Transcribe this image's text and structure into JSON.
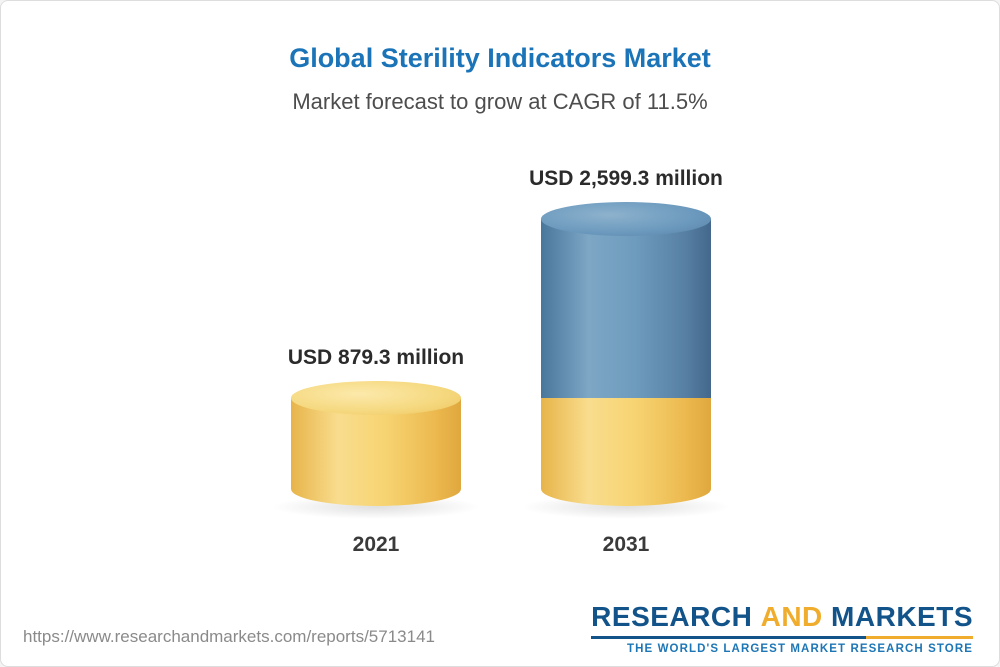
{
  "chart_data": {
    "type": "bar",
    "title": "Global Sterility Indicators Market",
    "subtitle": "Market forecast to grow at CAGR of 11.5%",
    "categories": [
      "2021",
      "2031"
    ],
    "values": [
      879.3,
      2599.3
    ],
    "value_labels": [
      "USD 879.3 million",
      "USD 2,599.3 million"
    ],
    "unit": "USD million",
    "ylim": [
      0,
      2599.3
    ],
    "legend": "none",
    "grid": "off",
    "colors": {
      "bar_2021": "#f5cf6b",
      "bar_2031_growth": "#6496ba",
      "bar_2031_base": "#f5cf6b",
      "title": "#1b74b8"
    }
  },
  "footer": {
    "url": "https://www.researchandmarkets.com/reports/5713141",
    "logo": {
      "research": "RESEARCH",
      "and": "AND",
      "markets": "MARKETS",
      "tagline": "THE WORLD'S LARGEST MARKET RESEARCH STORE"
    }
  }
}
